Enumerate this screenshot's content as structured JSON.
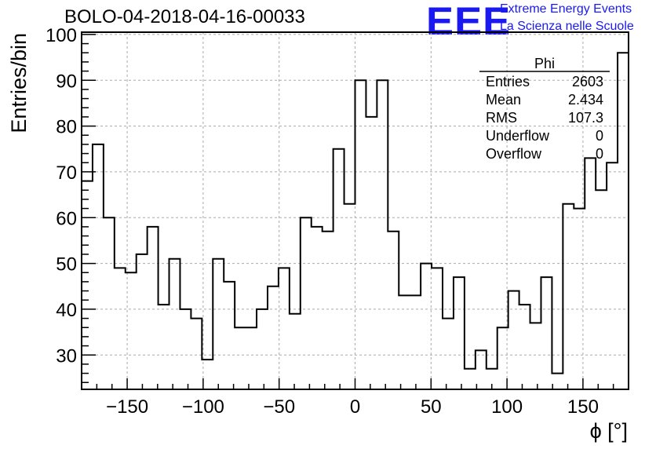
{
  "header": {
    "title": "BOLO-04-2018-04-16-00033",
    "logo_text": "EEE",
    "org_line1": "Extreme Energy Events",
    "org_line2": "La Scienza nelle Scuole"
  },
  "stats": {
    "name": "Phi",
    "rows": [
      {
        "label": "Entries",
        "value": "2603"
      },
      {
        "label": "Mean",
        "value": "2.434"
      },
      {
        "label": "RMS",
        "value": "107.3"
      },
      {
        "label": "Underflow",
        "value": "0"
      },
      {
        "label": "Overflow",
        "value": "0"
      }
    ]
  },
  "colors": {
    "line": "#000000",
    "grid": "#aaaaaa",
    "brand": "#1a1af0"
  },
  "chart_data": {
    "type": "bar",
    "style": "step-histogram",
    "title": "BOLO-04-2018-04-16-00033",
    "xlabel": "ϕ [°]",
    "ylabel": "Entries/bin",
    "xlim": [
      -180,
      180
    ],
    "ylim": [
      22.5,
      100.5
    ],
    "bin_width": 7.2,
    "x_ticks": [
      -150,
      -100,
      -50,
      0,
      50,
      100,
      150
    ],
    "x_tick_labels": [
      "−150",
      "−100",
      "−50",
      "0",
      "50",
      "100",
      "150"
    ],
    "y_ticks": [
      30,
      40,
      50,
      60,
      70,
      80,
      90,
      100
    ],
    "y_tick_labels": [
      "30",
      "40",
      "50",
      "60",
      "70",
      "80",
      "90",
      "100"
    ],
    "grid": true,
    "values": [
      68,
      76,
      60,
      49,
      48,
      52,
      58,
      41,
      51,
      40,
      38,
      29,
      51,
      46,
      36,
      36,
      40,
      45,
      49,
      39,
      60,
      58,
      57,
      75,
      63,
      90,
      82,
      90,
      57,
      43,
      43,
      50,
      49,
      38,
      47,
      27,
      31,
      27,
      36,
      44,
      41,
      37,
      47,
      26,
      63,
      62,
      73,
      66,
      72,
      96
    ]
  }
}
